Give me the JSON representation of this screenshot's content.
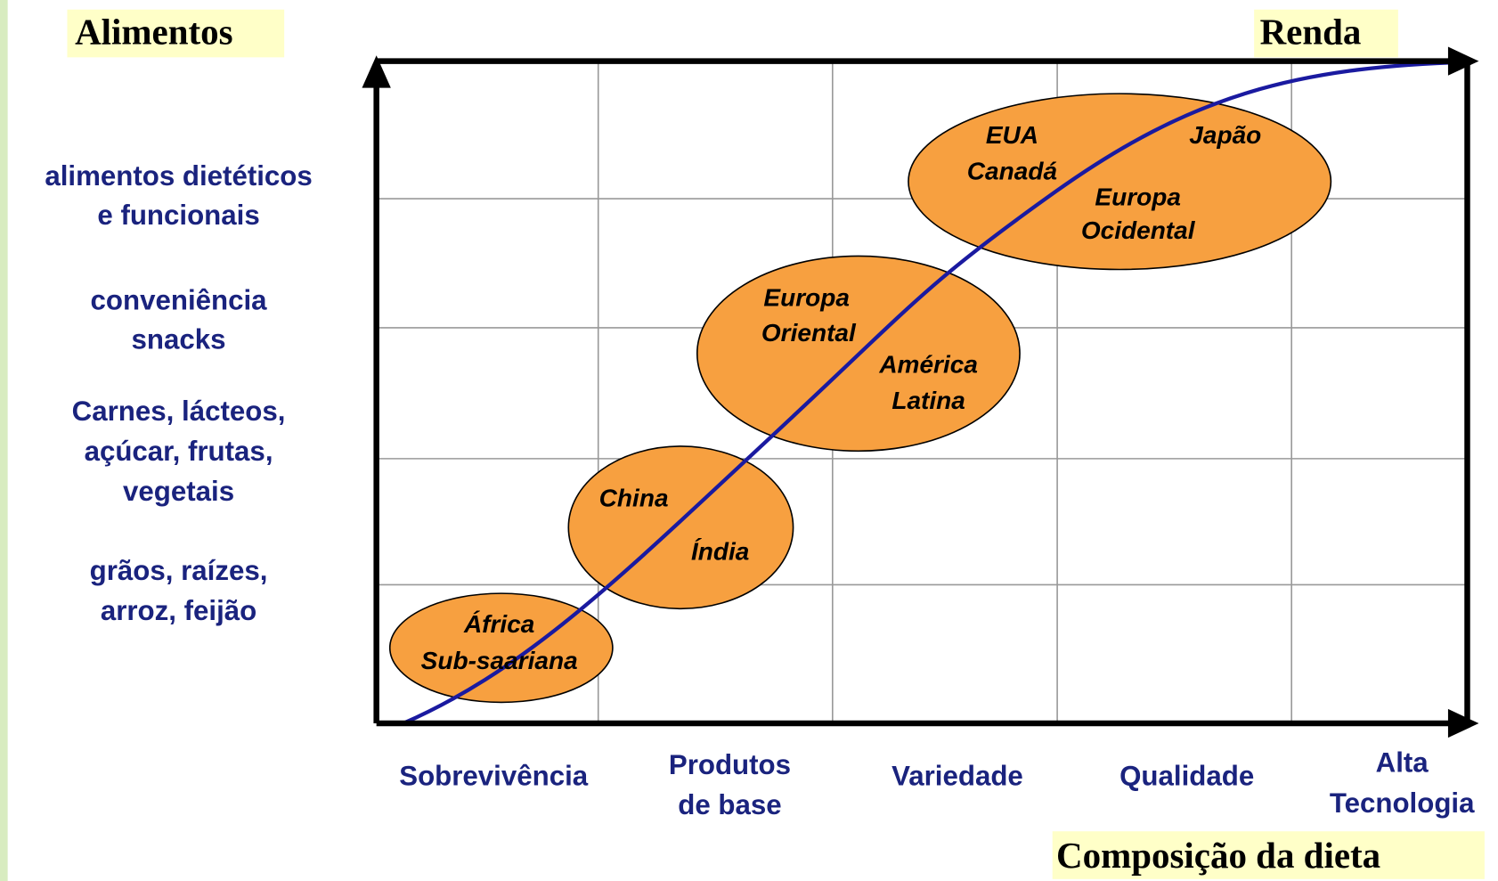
{
  "header": {
    "y_title": "Alimentos",
    "top_right_title": "Renda",
    "x_title": "Composição da dieta"
  },
  "y_labels": [
    [
      "alimentos dietéticos",
      "e funcionais"
    ],
    [
      "conveniência",
      "snacks"
    ],
    [
      "Carnes, lácteos,",
      "açúcar, frutas,",
      "vegetais"
    ],
    [
      "grãos, raízes,",
      "arroz, feijão"
    ]
  ],
  "x_labels": [
    [
      "Sobrevivência"
    ],
    [
      "Produtos",
      "de base"
    ],
    [
      "Variedade"
    ],
    [
      "Qualidade"
    ],
    [
      "Alta",
      "Tecnologia"
    ]
  ],
  "regions": [
    [
      "África",
      "Sub-saariana"
    ],
    [
      "China",
      "Índia"
    ],
    [
      "Europa",
      "Oriental",
      "América",
      "Latina"
    ],
    [
      "EUA",
      "Canadá",
      "Japão",
      "Europa",
      "Ocidental"
    ]
  ]
}
